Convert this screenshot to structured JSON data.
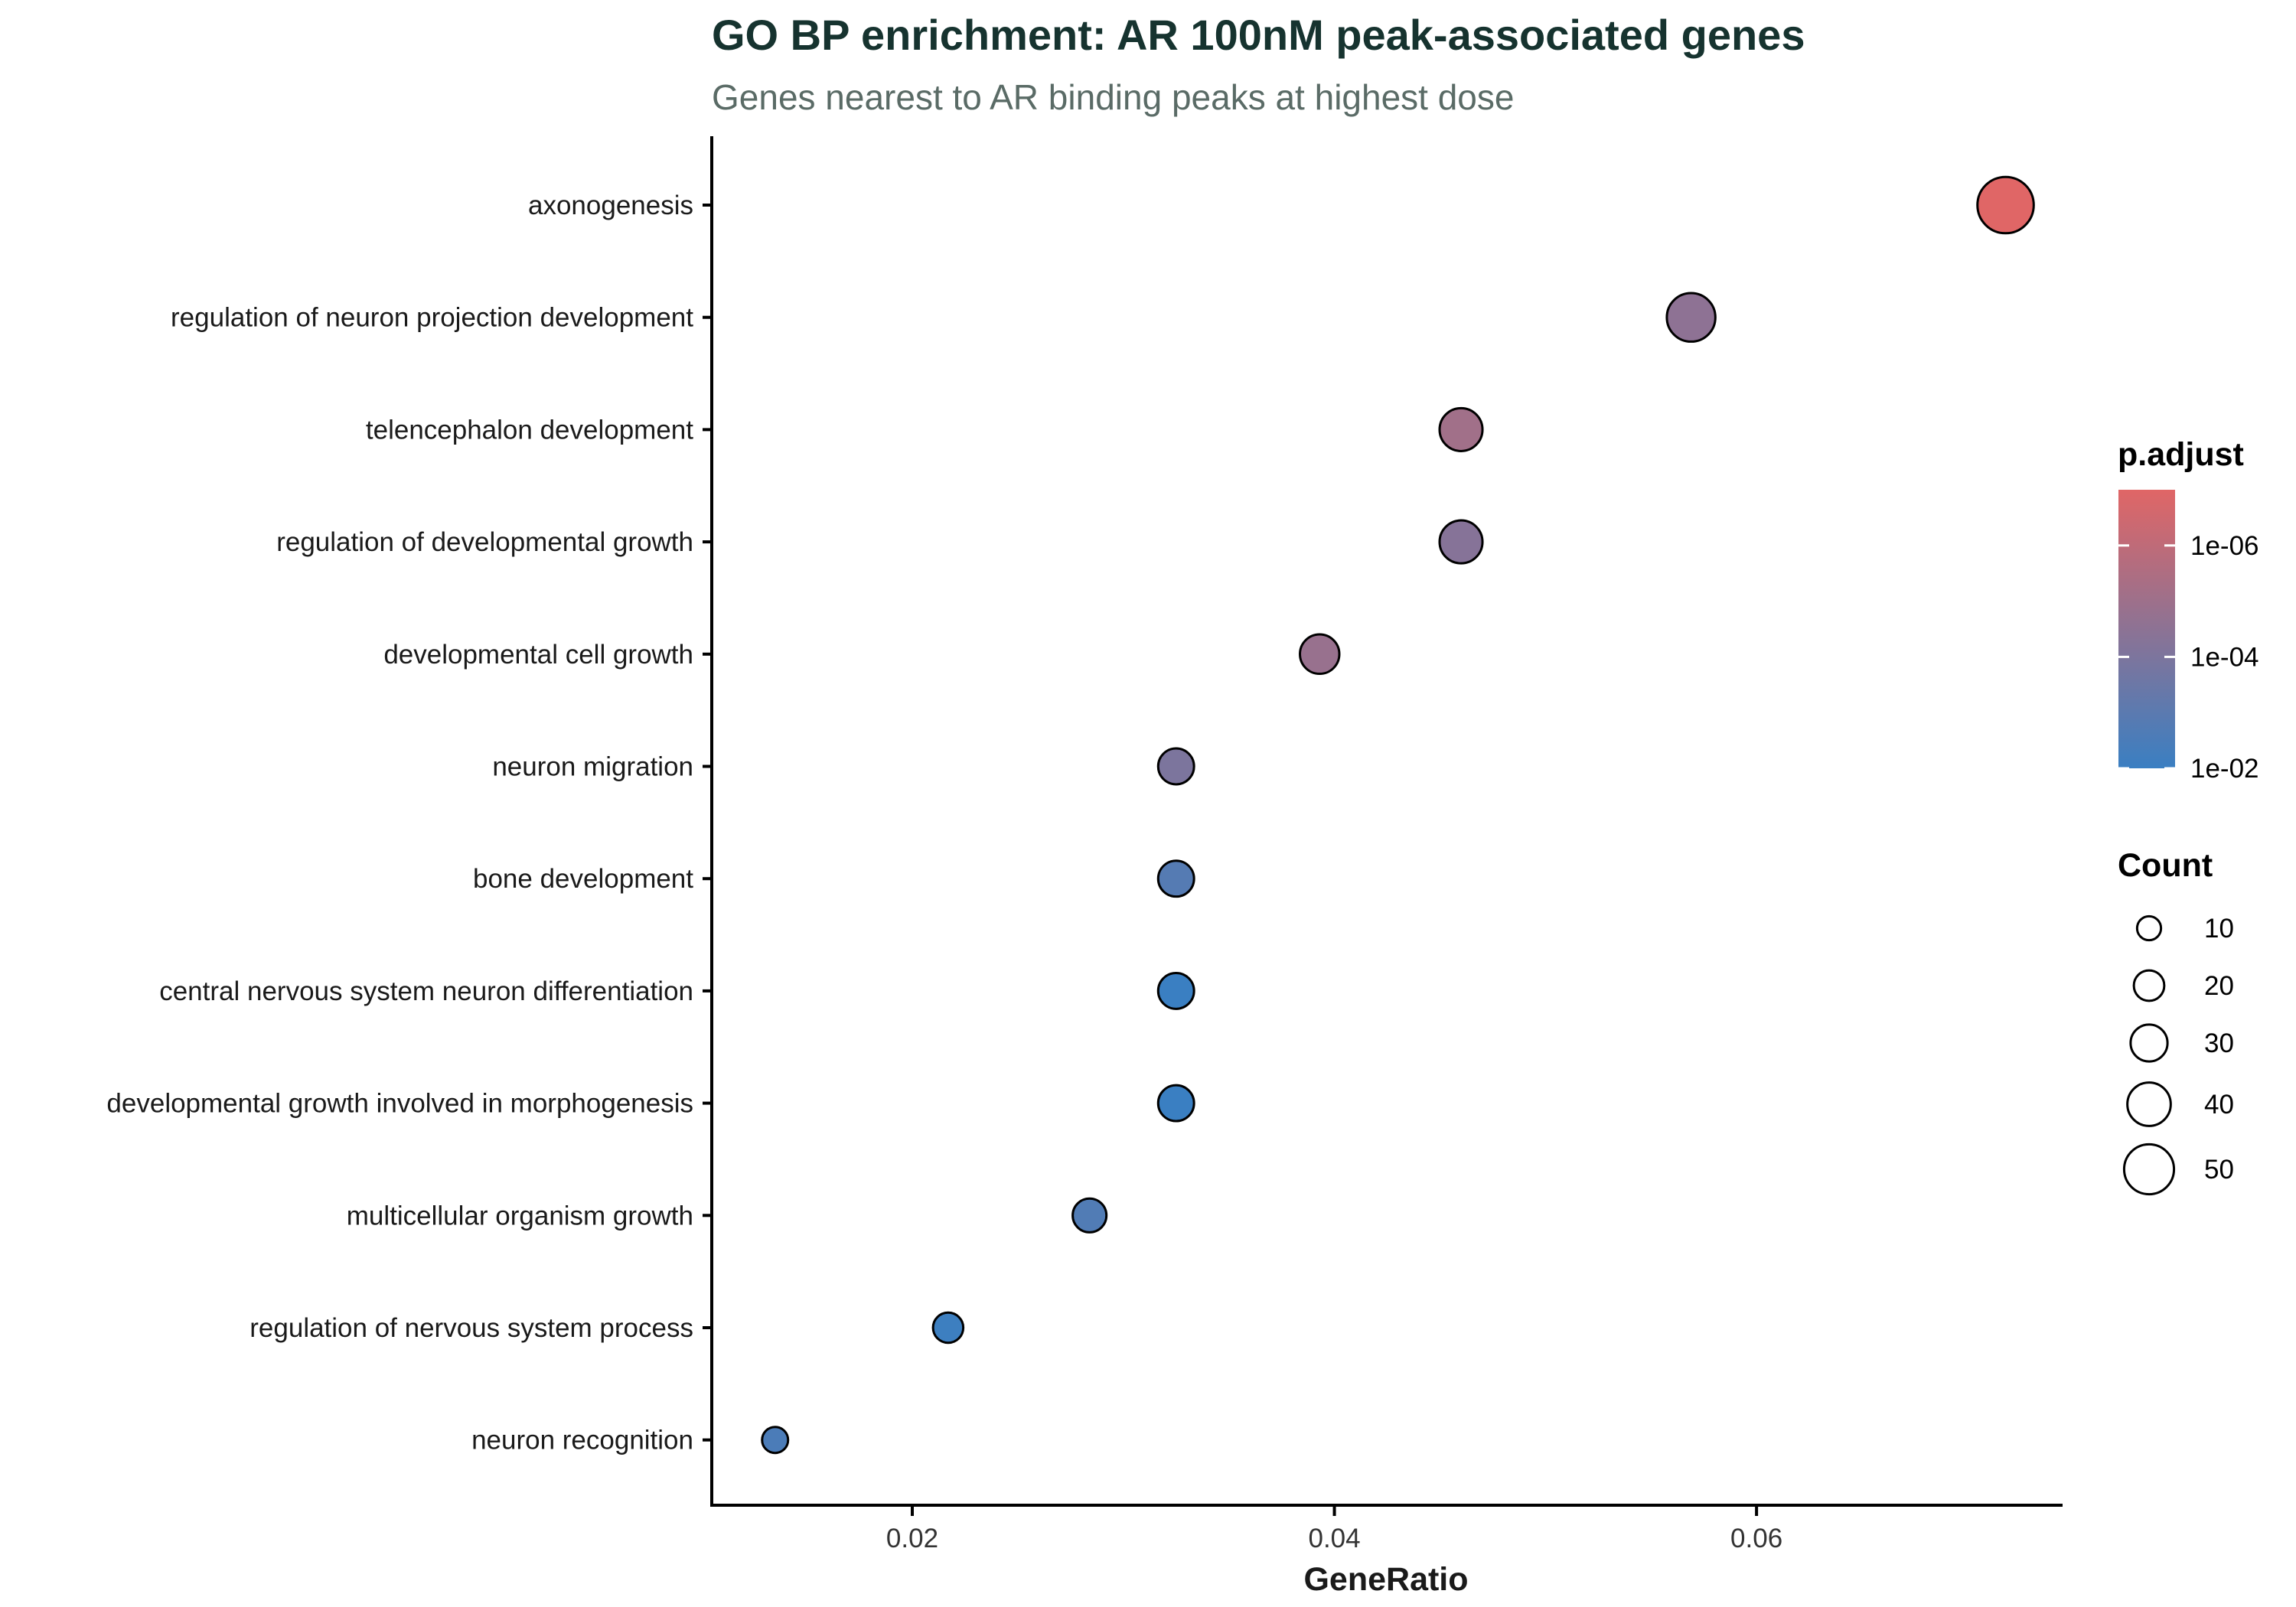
{
  "colors": {
    "title": "#16332f",
    "subtitle": "#5a6b66",
    "axis": "#000000",
    "high": "#e06666",
    "low": "#3a7fc2",
    "point_stroke": "#000000"
  },
  "chart_data": {
    "type": "scatter",
    "title": "GO BP enrichment: AR 100nM peak-associated genes",
    "subtitle": "Genes nearest to AR binding peaks at highest dose",
    "xlabel": "GeneRatio",
    "ylabel": "",
    "xlim": [
      0.0105,
      0.0745
    ],
    "x_ticks": [
      0.02,
      0.04,
      0.06
    ],
    "x_tick_labels": [
      "0.02",
      "0.04",
      "0.06"
    ],
    "grid": false,
    "categories": [
      "axonogenesis",
      "regulation of neuron projection development",
      "telencephalon development",
      "regulation of developmental growth",
      "developmental cell growth",
      "neuron migration",
      "bone development",
      "central nervous system neuron differentiation",
      "developmental growth involved in morphogenesis",
      "multicellular organism growth",
      "regulation of nervous system process",
      "neuron recognition"
    ],
    "points": [
      {
        "term": "axonogenesis",
        "gene_ratio": 0.0718,
        "count": 53,
        "p_adjust": 1e-07
      },
      {
        "term": "regulation of neuron projection development",
        "gene_ratio": 0.0569,
        "count": 42,
        "p_adjust": 3e-05
      },
      {
        "term": "telencephalon development",
        "gene_ratio": 0.046,
        "count": 34,
        "p_adjust": 8e-06
      },
      {
        "term": "regulation of developmental growth",
        "gene_ratio": 0.046,
        "count": 34,
        "p_adjust": 5e-05
      },
      {
        "term": "developmental cell growth",
        "gene_ratio": 0.0393,
        "count": 29,
        "p_adjust": 1.5e-05
      },
      {
        "term": "neuron migration",
        "gene_ratio": 0.0325,
        "count": 24,
        "p_adjust": 0.0001
      },
      {
        "term": "bone development",
        "gene_ratio": 0.0325,
        "count": 24,
        "p_adjust": 0.0015
      },
      {
        "term": "central nervous system neuron differentiation",
        "gene_ratio": 0.0325,
        "count": 24,
        "p_adjust": 0.01
      },
      {
        "term": "developmental growth involved in morphogenesis",
        "gene_ratio": 0.0325,
        "count": 24,
        "p_adjust": 0.01
      },
      {
        "term": "multicellular organism growth",
        "gene_ratio": 0.0284,
        "count": 21,
        "p_adjust": 0.002
      },
      {
        "term": "regulation of nervous system process",
        "gene_ratio": 0.0217,
        "count": 16,
        "p_adjust": 0.008
      },
      {
        "term": "neuron recognition",
        "gene_ratio": 0.0135,
        "count": 10,
        "p_adjust": 0.003
      }
    ],
    "color_legend": {
      "title": "p.adjust",
      "scale": "log10",
      "range": [
        0.01,
        1e-07
      ],
      "ticks": [
        1e-06,
        0.0001,
        0.01
      ],
      "tick_labels": [
        "1e-06",
        "1e-04",
        "1e-02"
      ]
    },
    "size_legend": {
      "title": "Count",
      "values": [
        10,
        20,
        30,
        40,
        50
      ],
      "labels": [
        "10",
        "20",
        "30",
        "40",
        "50"
      ]
    }
  }
}
